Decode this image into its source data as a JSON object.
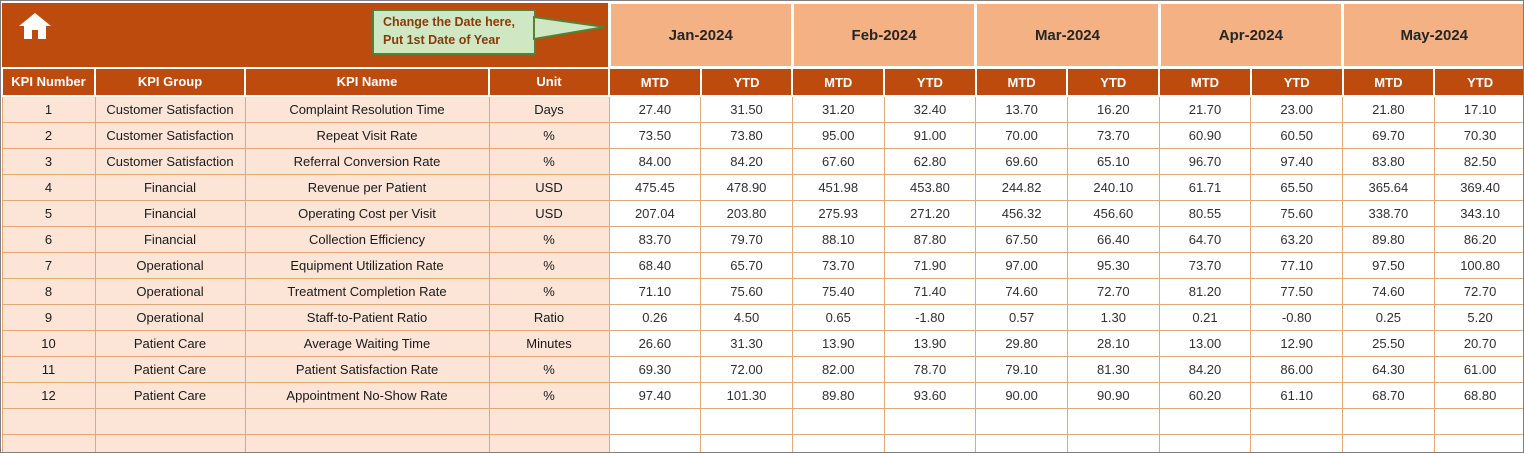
{
  "colors": {
    "header_bg": "#BE4B0E",
    "month_bg": "#F4B183",
    "left_col_bg": "#FCE4D6",
    "grid_line": "#E3A878",
    "callout_bg": "#CFE7C2",
    "callout_border": "#538135",
    "callout_text": "#843C0C"
  },
  "callout": {
    "line1": "Change the Date here,",
    "line2": "Put 1st Date of Year"
  },
  "months": [
    "Jan-2024",
    "Feb-2024",
    "Mar-2024",
    "Apr-2024",
    "May-2024"
  ],
  "subheaders": [
    "MTD",
    "YTD"
  ],
  "columns": [
    "KPI Number",
    "KPI Group",
    "KPI Name",
    "Unit"
  ],
  "rows": [
    {
      "number": "1",
      "group": "Customer Satisfaction",
      "name": "Complaint Resolution Time",
      "unit": "Days",
      "values": [
        "27.40",
        "31.50",
        "31.20",
        "32.40",
        "13.70",
        "16.20",
        "21.70",
        "23.00",
        "21.80",
        "17.10"
      ]
    },
    {
      "number": "2",
      "group": "Customer Satisfaction",
      "name": "Repeat Visit Rate",
      "unit": "%",
      "values": [
        "73.50",
        "73.80",
        "95.00",
        "91.00",
        "70.00",
        "73.70",
        "60.90",
        "60.50",
        "69.70",
        "70.30"
      ]
    },
    {
      "number": "3",
      "group": "Customer Satisfaction",
      "name": "Referral Conversion Rate",
      "unit": "%",
      "values": [
        "84.00",
        "84.20",
        "67.60",
        "62.80",
        "69.60",
        "65.10",
        "96.70",
        "97.40",
        "83.80",
        "82.50"
      ]
    },
    {
      "number": "4",
      "group": "Financial",
      "name": "Revenue per Patient",
      "unit": "USD",
      "values": [
        "475.45",
        "478.90",
        "451.98",
        "453.80",
        "244.82",
        "240.10",
        "61.71",
        "65.50",
        "365.64",
        "369.40"
      ]
    },
    {
      "number": "5",
      "group": "Financial",
      "name": "Operating Cost per Visit",
      "unit": "USD",
      "values": [
        "207.04",
        "203.80",
        "275.93",
        "271.20",
        "456.32",
        "456.60",
        "80.55",
        "75.60",
        "338.70",
        "343.10"
      ]
    },
    {
      "number": "6",
      "group": "Financial",
      "name": "Collection Efficiency",
      "unit": "%",
      "values": [
        "83.70",
        "79.70",
        "88.10",
        "87.80",
        "67.50",
        "66.40",
        "64.70",
        "63.20",
        "89.80",
        "86.20"
      ]
    },
    {
      "number": "7",
      "group": "Operational",
      "name": "Equipment Utilization Rate",
      "unit": "%",
      "values": [
        "68.40",
        "65.70",
        "73.70",
        "71.90",
        "97.00",
        "95.30",
        "73.70",
        "77.10",
        "97.50",
        "100.80"
      ]
    },
    {
      "number": "8",
      "group": "Operational",
      "name": "Treatment Completion Rate",
      "unit": "%",
      "values": [
        "71.10",
        "75.60",
        "75.40",
        "71.40",
        "74.60",
        "72.70",
        "81.20",
        "77.50",
        "74.60",
        "72.70"
      ]
    },
    {
      "number": "9",
      "group": "Operational",
      "name": "Staff-to-Patient Ratio",
      "unit": "Ratio",
      "values": [
        "0.26",
        "4.50",
        "0.65",
        "-1.80",
        "0.57",
        "1.30",
        "0.21",
        "-0.80",
        "0.25",
        "5.20"
      ]
    },
    {
      "number": "10",
      "group": "Patient Care",
      "name": "Average Waiting Time",
      "unit": "Minutes",
      "values": [
        "26.60",
        "31.30",
        "13.90",
        "13.90",
        "29.80",
        "28.10",
        "13.00",
        "12.90",
        "25.50",
        "20.70"
      ]
    },
    {
      "number": "11",
      "group": "Patient Care",
      "name": "Patient Satisfaction Rate",
      "unit": "%",
      "values": [
        "69.30",
        "72.00",
        "82.00",
        "78.70",
        "79.10",
        "81.30",
        "84.20",
        "86.00",
        "64.30",
        "61.00"
      ]
    },
    {
      "number": "12",
      "group": "Patient Care",
      "name": "Appointment No-Show Rate",
      "unit": "%",
      "values": [
        "97.40",
        "101.30",
        "89.80",
        "93.60",
        "90.00",
        "90.90",
        "60.20",
        "61.10",
        "68.70",
        "68.80"
      ]
    }
  ],
  "empty_row_count": 2
}
